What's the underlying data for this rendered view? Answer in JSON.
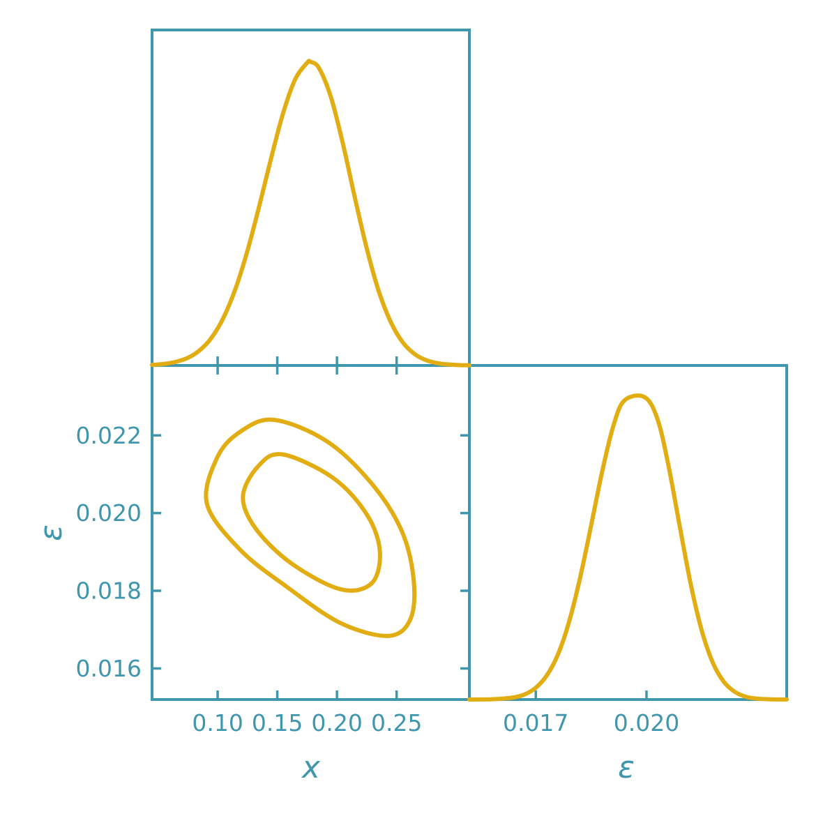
{
  "figure": {
    "kind": "corner-plot",
    "background": "#ffffff"
  },
  "colors": {
    "axes": "#3f96ad",
    "curve": "#e2ad12"
  },
  "chart_data": [
    {
      "id": "x-marginal",
      "type": "line",
      "title": "",
      "xlabel": "x",
      "ylabel": "",
      "legend": "none",
      "grid": false,
      "xlim": [
        0.045,
        0.311
      ],
      "xticks": [
        0.1,
        0.15,
        0.2,
        0.25
      ],
      "xtick_labels": [
        "0.10",
        "0.15",
        "0.20",
        "0.25"
      ],
      "peak_fraction": 0.905,
      "curve": {
        "x": [
          0.045,
          0.055,
          0.065,
          0.075,
          0.085,
          0.095,
          0.105,
          0.115,
          0.125,
          0.135,
          0.145,
          0.155,
          0.165,
          0.175,
          0.178,
          0.185,
          0.195,
          0.205,
          0.215,
          0.225,
          0.235,
          0.245,
          0.255,
          0.265,
          0.275,
          0.285,
          0.295,
          0.305,
          0.311
        ],
        "y": [
          0.002,
          0.005,
          0.012,
          0.025,
          0.05,
          0.092,
          0.158,
          0.253,
          0.378,
          0.527,
          0.686,
          0.833,
          0.943,
          0.997,
          1.0,
          0.979,
          0.883,
          0.73,
          0.553,
          0.385,
          0.245,
          0.144,
          0.077,
          0.038,
          0.017,
          0.007,
          0.003,
          0.001,
          0.0005
        ]
      },
      "summary": {
        "peak_at": 0.178
      }
    },
    {
      "id": "x-epsilon-contour",
      "type": "contour",
      "title": "",
      "xlabel": "x",
      "ylabel": "ε",
      "legend": "none",
      "grid": false,
      "xlim": [
        0.045,
        0.311
      ],
      "ylim": [
        0.0152,
        0.0238
      ],
      "xticks": [
        0.1,
        0.15,
        0.2,
        0.25
      ],
      "xtick_labels": [
        "0.10",
        "0.15",
        "0.20",
        "0.25"
      ],
      "yticks": [
        0.016,
        0.018,
        0.02,
        0.022
      ],
      "ytick_labels": [
        "0.016",
        "0.018",
        "0.020",
        "0.022"
      ],
      "contours": {
        "outer": [
          [
            0.147,
            0.0224
          ],
          [
            0.191,
            0.02186
          ],
          [
            0.228,
            0.0208
          ],
          [
            0.2534,
            0.0196
          ],
          [
            0.264,
            0.01837
          ],
          [
            0.262,
            0.0173
          ],
          [
            0.2437,
            0.01684
          ],
          [
            0.2029,
            0.01717
          ],
          [
            0.158,
            0.0181
          ],
          [
            0.119,
            0.01905
          ],
          [
            0.091,
            0.02024
          ],
          [
            0.0998,
            0.02144
          ],
          [
            0.1192,
            0.0221
          ]
        ],
        "inner": [
          [
            0.1543,
            0.02151
          ],
          [
            0.197,
            0.0209
          ],
          [
            0.2253,
            0.01995
          ],
          [
            0.236,
            0.019
          ],
          [
            0.229,
            0.01819
          ],
          [
            0.2029,
            0.01804
          ],
          [
            0.162,
            0.0187
          ],
          [
            0.1319,
            0.0196
          ],
          [
            0.1212,
            0.02042
          ],
          [
            0.1338,
            0.0212
          ]
        ]
      },
      "summary": {
        "correlation": "negative",
        "center": [
          0.17,
          0.02
        ]
      }
    },
    {
      "id": "epsilon-marginal",
      "type": "line",
      "title": "",
      "xlabel": "ε",
      "ylabel": "",
      "legend": "none",
      "grid": false,
      "xlim": [
        0.0152,
        0.0238
      ],
      "xticks": [
        0.017,
        0.02
      ],
      "xtick_labels": [
        "0.017",
        "0.020"
      ],
      "peak_fraction": 0.905,
      "curve": {
        "x": [
          0.0152,
          0.0155,
          0.0158,
          0.0161,
          0.0164,
          0.0167,
          0.017,
          0.0173,
          0.0176,
          0.0179,
          0.0182,
          0.0185,
          0.0188,
          0.0191,
          0.0194,
          0.01995,
          0.0203,
          0.0206,
          0.0209,
          0.0212,
          0.0215,
          0.0218,
          0.0221,
          0.0224,
          0.0227,
          0.023,
          0.0233,
          0.0236,
          0.0238
        ],
        "y": [
          0.0001,
          0.0003,
          0.0009,
          0.003,
          0.007,
          0.017,
          0.039,
          0.08,
          0.149,
          0.256,
          0.402,
          0.576,
          0.755,
          0.904,
          0.989,
          1.0,
          0.927,
          0.771,
          0.573,
          0.381,
          0.227,
          0.121,
          0.058,
          0.025,
          0.009,
          0.003,
          0.001,
          0.0003,
          0.0002
        ]
      },
      "summary": {
        "peak_at": 0.02
      }
    }
  ]
}
